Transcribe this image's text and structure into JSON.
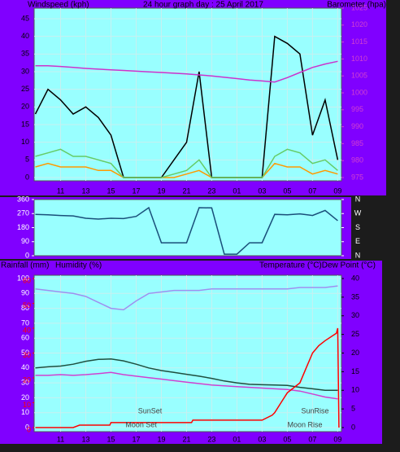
{
  "chart_data": [
    {
      "type": "line",
      "title": "24 hour graph day : 25 April 2017",
      "y_label": "Windspeed (kph)",
      "y2_label": "Barometer (hpa)",
      "x": [
        9,
        10,
        11,
        12,
        13,
        14,
        15,
        16,
        17,
        18,
        19,
        20,
        21,
        22,
        23,
        24,
        25,
        26,
        27,
        28,
        29,
        30,
        31,
        32,
        33
      ],
      "xlim": [
        8.9,
        33.3
      ],
      "xticks": [
        11,
        13,
        15,
        17,
        19,
        21,
        23,
        {
          "value": 25,
          "label": "01"
        },
        {
          "value": 27,
          "label": "03"
        },
        {
          "value": 29,
          "label": "05"
        },
        {
          "value": 31,
          "label": "07"
        },
        {
          "value": 33,
          "label": "09"
        }
      ],
      "ylim": [
        0,
        48
      ],
      "yticks": [
        0,
        5,
        10,
        15,
        20,
        25,
        30,
        35,
        40,
        45
      ],
      "y2lim": [
        975,
        1025
      ],
      "y2ticks": [
        975,
        980,
        985,
        990,
        995,
        1000,
        1005,
        1010,
        1015,
        1020,
        1025
      ],
      "grid": true,
      "series": [
        {
          "color": "#ff9900",
          "values": [
            3,
            4,
            3,
            3,
            3,
            2,
            2,
            0,
            0,
            0,
            0,
            0,
            1,
            2,
            0,
            0,
            0,
            0,
            0,
            4,
            3,
            3,
            1,
            2,
            1
          ]
        },
        {
          "color": "#000000",
          "values": [
            18,
            25,
            22,
            18,
            20,
            17,
            12,
            0,
            0,
            0,
            0,
            5,
            10,
            30,
            0,
            0,
            0,
            0,
            0,
            40,
            38,
            35,
            12,
            22,
            5
          ]
        },
        {
          "color": "#66cc66",
          "values": [
            6,
            7,
            8,
            6,
            6,
            5,
            4,
            0,
            0,
            0,
            0,
            1,
            2,
            5,
            0,
            0,
            0,
            0,
            0,
            6,
            8,
            7,
            4,
            5,
            2
          ]
        },
        {
          "color": "#cc33cc",
          "axis": "y2",
          "values": [
            1008,
            1008,
            1007.8,
            1007.5,
            1007.2,
            1007,
            1006.8,
            1006.6,
            1006.4,
            1006.2,
            1006,
            1005.8,
            1005.6,
            1005.3,
            1005,
            1004.6,
            1004.2,
            1003.8,
            1003.5,
            1003.2,
            1004.5,
            1006,
            1007.5,
            1008.5,
            1009.3
          ]
        }
      ]
    },
    {
      "type": "line",
      "x": [
        9,
        10,
        11,
        12,
        13,
        14,
        15,
        16,
        17,
        18,
        19,
        20,
        21,
        22,
        23,
        24,
        25,
        26,
        27,
        28,
        29,
        30,
        31,
        32,
        33
      ],
      "xlim": [
        8.9,
        33.3
      ],
      "ylim": [
        0,
        360
      ],
      "yticks": [
        0,
        90,
        180,
        270,
        360
      ],
      "y2lim": [
        0,
        360
      ],
      "y2ticks": [
        {
          "value": 360,
          "label": "N"
        },
        {
          "value": 270,
          "label": "W"
        },
        {
          "value": 180,
          "label": "S"
        },
        {
          "value": 90,
          "label": "E"
        },
        {
          "value": 0,
          "label": "N"
        }
      ],
      "series": [
        {
          "color": "#1a4f7a",
          "values": [
            265,
            262,
            258,
            255,
            240,
            235,
            240,
            238,
            252,
            308,
            83,
            83,
            83,
            308,
            306,
            10,
            10,
            83,
            83,
            265,
            262,
            268,
            258,
            290,
            225
          ]
        }
      ]
    },
    {
      "type": "line",
      "y_label": "Humidity (%)",
      "y2_label": "Temperature (°C)Dew Point (°C)",
      "y3_label": "Rainfall (mm)",
      "x": [
        9,
        10,
        11,
        12,
        13,
        14,
        15,
        16,
        17,
        18,
        19,
        20,
        21,
        22,
        23,
        24,
        25,
        26,
        27,
        28,
        29,
        30,
        31,
        32,
        33
      ],
      "xlim": [
        8.9,
        33.3
      ],
      "xticks": [
        11,
        13,
        15,
        17,
        19,
        21,
        23,
        {
          "value": 25,
          "label": "01"
        },
        {
          "value": 27,
          "label": "03"
        },
        {
          "value": 29,
          "label": "05"
        },
        {
          "value": 31,
          "label": "07"
        },
        {
          "value": 33,
          "label": "09"
        }
      ],
      "ylim": [
        0,
        100
      ],
      "yticks": [
        0,
        10,
        20,
        30,
        40,
        50,
        60,
        70,
        80,
        90,
        100
      ],
      "y2lim": [
        0,
        40
      ],
      "y2ticks": [
        0,
        5,
        10,
        15,
        20,
        25,
        30,
        35,
        40
      ],
      "y3lim": [
        0,
        60
      ],
      "y3ticks": [
        0,
        10,
        20,
        30,
        40,
        50,
        60
      ],
      "grid": true,
      "series": [
        {
          "color": "#9f8fef",
          "values": [
            93,
            92,
            91,
            90,
            88,
            84,
            80,
            79,
            85,
            90,
            91,
            92,
            92,
            92,
            93,
            93,
            93,
            93,
            93,
            93,
            93,
            94,
            94,
            94,
            95
          ]
        },
        {
          "color": "#1f4f3f",
          "axis": "y2",
          "values": [
            16,
            16.3,
            16.5,
            17,
            17.8,
            18.3,
            18.4,
            17.9,
            17,
            16,
            15.3,
            14.8,
            14.3,
            13.8,
            13.2,
            12.5,
            12,
            11.6,
            11.5,
            11.4,
            11.3,
            10.8,
            10.4,
            10,
            10
          ]
        },
        {
          "color": "#d040d0",
          "axis": "y2",
          "values": [
            14,
            14,
            14.2,
            14,
            14.2,
            14.5,
            14.8,
            14.2,
            13.8,
            13.4,
            13,
            12.6,
            12.2,
            11.8,
            11.4,
            11.2,
            11,
            10.8,
            10.6,
            10.4,
            10.2,
            9.8,
            9,
            8.2,
            7.7
          ]
        },
        {
          "color": "#ff0000",
          "axis": "y3",
          "x": [
            9,
            12,
            12.5,
            14.9,
            15,
            21.4,
            21.5,
            27,
            27.8,
            28,
            28.5,
            29,
            30,
            30.5,
            31,
            31.5,
            32,
            32.9,
            33,
            33.1
          ],
          "values": [
            0,
            0,
            1,
            1,
            2,
            2,
            3,
            3,
            5,
            6,
            10,
            14,
            18,
            24,
            30,
            33,
            35,
            38,
            40,
            0
          ]
        }
      ],
      "annotations": [
        {
          "text": "SunSet",
          "x": 18.1
        },
        {
          "text": "Moon Set",
          "x": 17.4
        },
        {
          "text": "SunRise",
          "x": 31.2
        },
        {
          "text": "Moon Rise",
          "x": 30.4
        }
      ]
    }
  ]
}
